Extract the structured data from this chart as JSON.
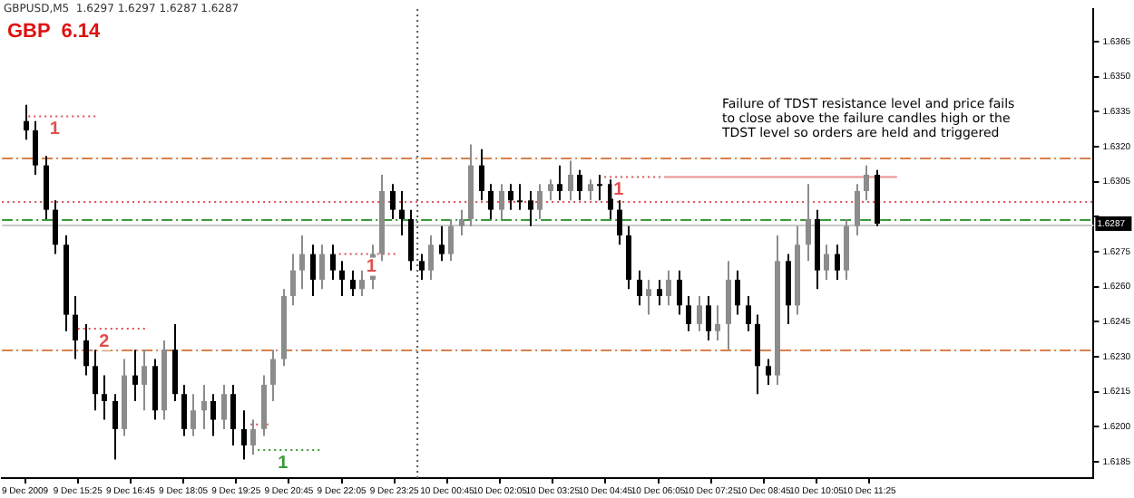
{
  "chart_data": {
    "type": "candlestick",
    "title": "GBPUSD,M5  1.6297 1.6297 1.6287 1.6287",
    "annotations": [
      "GBP  6.14",
      "Failure of TDST resistance level and price fails to close above the failure candles high or the TDST level so orders are held and triggered",
      {
        "text": "1",
        "x": "2009-12-09T14:50",
        "y": 1.6333
      },
      {
        "text": "2",
        "x": "2009-12-09T16:05",
        "y": 1.6242
      },
      {
        "text": "1",
        "x": "2009-12-09T22:50",
        "y": 1.6274
      },
      {
        "text": "1",
        "x": "2009-12-09T20:36",
        "y": 1.619
      },
      {
        "text": "1",
        "x": "2009-12-10T05:05",
        "y": 1.6307
      }
    ],
    "colors": [
      "#000000",
      "#000000",
      "#000000",
      "#000000",
      "#000000",
      "#000000",
      "#000000",
      "#000000",
      "#000000",
      "#000000",
      "#8c8c8c",
      "#000000",
      "#8c8c8c",
      "#000000",
      "#8c8c8c",
      "#000000",
      "#000000",
      "#8c8c8c",
      "#8c8c8c",
      "#000000",
      "#8c8c8c",
      "#000000",
      "#000000",
      "#8c8c8c",
      "#8c8c8c",
      "#8c8c8c",
      "#8c8c8c",
      "#8c8c8c",
      "#8c8c8c",
      "#000000",
      "#8c8c8c",
      "#000000",
      "#000000",
      "#000000",
      "#8c8c8c",
      "#8c8c8c",
      "#8c8c8c",
      "#000000",
      "#000000",
      "#000000",
      "#000000",
      "#8c8c8c",
      "#000000",
      "#8c8c8c",
      "#8c8c8c",
      "#8c8c8c",
      "#000000",
      "#000000",
      "#8c8c8c",
      "#000000",
      "#000000",
      "#000000",
      "#8c8c8c",
      "#8c8c8c",
      "#000000",
      "#8c8c8c",
      "#000000",
      "#8c8c8c",
      "#000000",
      "#000000",
      "#000000",
      "#000000",
      "#000000",
      "#8c8c8c",
      "#000000",
      "#8c8c8c",
      "#000000",
      "#000000",
      "#8c8c8c",
      "#000000",
      "#8c8c8c",
      "#8c8c8c",
      "#000000",
      "#000000",
      "#000000",
      "#000000",
      "#8c8c8c",
      "#000000",
      "#8c8c8c",
      "#8c8c8c",
      "#000000",
      "#8c8c8c",
      "#000000",
      "#8c8c8c",
      "#8c8c8c",
      "#8c8c8c",
      "#000000"
    ],
    "x": [
      "2009-12-09T14:05",
      "2009-12-09T14:20",
      "2009-12-09T14:35",
      "2009-12-09T14:50",
      "2009-12-09T15:05",
      "2009-12-09T15:20",
      "2009-12-09T15:35",
      "2009-12-09T15:50",
      "2009-12-09T16:05",
      "2009-12-09T16:20",
      "2009-12-09T16:35",
      "2009-12-09T16:50",
      "2009-12-09T17:05",
      "2009-12-09T17:20",
      "2009-12-09T17:35",
      "2009-12-09T17:50",
      "2009-12-09T18:05",
      "2009-12-09T18:20",
      "2009-12-09T18:35",
      "2009-12-09T18:50",
      "2009-12-09T19:05",
      "2009-12-09T19:20",
      "2009-12-09T19:35",
      "2009-12-09T19:50",
      "2009-12-09T20:05",
      "2009-12-09T20:20",
      "2009-12-09T20:35",
      "2009-12-09T20:50",
      "2009-12-09T21:05",
      "2009-12-09T21:20",
      "2009-12-09T21:35",
      "2009-12-09T21:50",
      "2009-12-09T22:05",
      "2009-12-09T22:20",
      "2009-12-09T22:35",
      "2009-12-09T22:50",
      "2009-12-09T23:05",
      "2009-12-09T23:20",
      "2009-12-09T23:35",
      "2009-12-09T23:50",
      "2009-12-10T00:05",
      "2009-12-10T00:20",
      "2009-12-10T00:35",
      "2009-12-10T00:50",
      "2009-12-10T01:05",
      "2009-12-10T01:20",
      "2009-12-10T01:35",
      "2009-12-10T01:50",
      "2009-12-10T02:05",
      "2009-12-10T02:20",
      "2009-12-10T02:35",
      "2009-12-10T02:50",
      "2009-12-10T03:05",
      "2009-12-10T03:20",
      "2009-12-10T03:35",
      "2009-12-10T03:50",
      "2009-12-10T04:05",
      "2009-12-10T04:20",
      "2009-12-10T04:35",
      "2009-12-10T04:50",
      "2009-12-10T05:05",
      "2009-12-10T05:20",
      "2009-12-10T05:35",
      "2009-12-10T05:50",
      "2009-12-10T06:05",
      "2009-12-10T06:20",
      "2009-12-10T06:35",
      "2009-12-10T06:50",
      "2009-12-10T07:05",
      "2009-12-10T07:20",
      "2009-12-10T07:35",
      "2009-12-10T07:50",
      "2009-12-10T08:05",
      "2009-12-10T08:20",
      "2009-12-10T08:35",
      "2009-12-10T08:50",
      "2009-12-10T09:05",
      "2009-12-10T09:20",
      "2009-12-10T09:35",
      "2009-12-10T09:50",
      "2009-12-10T10:05",
      "2009-12-10T10:20",
      "2009-12-10T10:35",
      "2009-12-10T10:50",
      "2009-12-10T11:05",
      "2009-12-10T11:20",
      "2009-12-10T11:35"
    ],
    "ohlc": [
      [
        1.6331,
        1.6338,
        1.6323,
        1.6327
      ],
      [
        1.6327,
        1.6331,
        1.6308,
        1.6312
      ],
      [
        1.6312,
        1.6316,
        1.6289,
        1.6293
      ],
      [
        1.6293,
        1.6297,
        1.6274,
        1.6278
      ],
      [
        1.6278,
        1.6282,
        1.6241,
        1.6248
      ],
      [
        1.6248,
        1.6256,
        1.6229,
        1.6237
      ],
      [
        1.6237,
        1.6244,
        1.6222,
        1.6226
      ],
      [
        1.6226,
        1.6233,
        1.6207,
        1.6214
      ],
      [
        1.6214,
        1.6222,
        1.6203,
        1.6211
      ],
      [
        1.6211,
        1.6214,
        1.6186,
        1.6199
      ],
      [
        1.6199,
        1.6229,
        1.6196,
        1.6222
      ],
      [
        1.6222,
        1.6233,
        1.6211,
        1.6218
      ],
      [
        1.6218,
        1.6233,
        1.6207,
        1.6226
      ],
      [
        1.6226,
        1.6229,
        1.6203,
        1.6207
      ],
      [
        1.6207,
        1.6237,
        1.6203,
        1.6233
      ],
      [
        1.6233,
        1.6244,
        1.6211,
        1.6214
      ],
      [
        1.6214,
        1.6218,
        1.6196,
        1.6199
      ],
      [
        1.6199,
        1.6214,
        1.6196,
        1.6207
      ],
      [
        1.6207,
        1.6218,
        1.6199,
        1.6211
      ],
      [
        1.6211,
        1.6214,
        1.6196,
        1.6203
      ],
      [
        1.6203,
        1.6218,
        1.6199,
        1.6214
      ],
      [
        1.6214,
        1.6218,
        1.6192,
        1.6199
      ],
      [
        1.6199,
        1.6207,
        1.6186,
        1.6192
      ],
      [
        1.6192,
        1.6203,
        1.6188,
        1.6199
      ],
      [
        1.6199,
        1.6222,
        1.6196,
        1.6218
      ],
      [
        1.6218,
        1.6233,
        1.6211,
        1.6229
      ],
      [
        1.6229,
        1.6259,
        1.6226,
        1.6256
      ],
      [
        1.6256,
        1.6274,
        1.6252,
        1.6267
      ],
      [
        1.6267,
        1.6282,
        1.6259,
        1.6274
      ],
      [
        1.6274,
        1.6278,
        1.6256,
        1.6263
      ],
      [
        1.6263,
        1.6278,
        1.6259,
        1.6274
      ],
      [
        1.6274,
        1.6278,
        1.6263,
        1.6267
      ],
      [
        1.6267,
        1.6271,
        1.6256,
        1.6263
      ],
      [
        1.6263,
        1.6267,
        1.6256,
        1.6259
      ],
      [
        1.6259,
        1.6267,
        1.6256,
        1.6263
      ],
      [
        1.6263,
        1.6278,
        1.6259,
        1.6274
      ],
      [
        1.6274,
        1.6308,
        1.6271,
        1.6301
      ],
      [
        1.6301,
        1.6304,
        1.6289,
        1.6293
      ],
      [
        1.6293,
        1.6301,
        1.6282,
        1.6289
      ],
      [
        1.6289,
        1.6293,
        1.6267,
        1.6271
      ],
      [
        1.6271,
        1.6274,
        1.6263,
        1.6267
      ],
      [
        1.6267,
        1.6282,
        1.6263,
        1.6278
      ],
      [
        1.6278,
        1.6286,
        1.6271,
        1.6274
      ],
      [
        1.6274,
        1.6289,
        1.6271,
        1.6286
      ],
      [
        1.6286,
        1.6293,
        1.6282,
        1.6289
      ],
      [
        1.6289,
        1.6321,
        1.6286,
        1.6312
      ],
      [
        1.6312,
        1.6319,
        1.6297,
        1.6301
      ],
      [
        1.6301,
        1.6304,
        1.6289,
        1.6293
      ],
      [
        1.6293,
        1.6304,
        1.6289,
        1.6301
      ],
      [
        1.6301,
        1.6304,
        1.6293,
        1.6297
      ],
      [
        1.6297,
        1.6304,
        1.6293,
        1.6297
      ],
      [
        1.6297,
        1.6301,
        1.6286,
        1.6293
      ],
      [
        1.6293,
        1.6304,
        1.6289,
        1.6301
      ],
      [
        1.6301,
        1.6306,
        1.6297,
        1.6304
      ],
      [
        1.6304,
        1.6312,
        1.6297,
        1.6301
      ],
      [
        1.6301,
        1.6314,
        1.6297,
        1.6308
      ],
      [
        1.6308,
        1.631,
        1.6297,
        1.6301
      ],
      [
        1.6301,
        1.6306,
        1.6297,
        1.6304
      ],
      [
        1.6304,
        1.6308,
        1.6297,
        1.6304
      ],
      [
        1.6304,
        1.6306,
        1.6289,
        1.6293
      ],
      [
        1.6293,
        1.6297,
        1.6278,
        1.6282
      ],
      [
        1.6282,
        1.6286,
        1.6259,
        1.6263
      ],
      [
        1.6263,
        1.6267,
        1.6252,
        1.6256
      ],
      [
        1.6256,
        1.6263,
        1.6248,
        1.6259
      ],
      [
        1.6259,
        1.6263,
        1.6252,
        1.6256
      ],
      [
        1.6256,
        1.6267,
        1.6252,
        1.6263
      ],
      [
        1.6263,
        1.6267,
        1.6248,
        1.6252
      ],
      [
        1.6252,
        1.6256,
        1.6241,
        1.6244
      ],
      [
        1.6244,
        1.6256,
        1.6241,
        1.6252
      ],
      [
        1.6252,
        1.6256,
        1.6237,
        1.6241
      ],
      [
        1.6241,
        1.6252,
        1.6237,
        1.6244
      ],
      [
        1.6244,
        1.6271,
        1.6233,
        1.6263
      ],
      [
        1.6263,
        1.6267,
        1.6248,
        1.6252
      ],
      [
        1.6252,
        1.6256,
        1.6241,
        1.6244
      ],
      [
        1.6244,
        1.6248,
        1.6214,
        1.6226
      ],
      [
        1.6226,
        1.6229,
        1.6218,
        1.6222
      ],
      [
        1.6222,
        1.6282,
        1.6218,
        1.6271
      ],
      [
        1.6271,
        1.6274,
        1.6244,
        1.6252
      ],
      [
        1.6252,
        1.6286,
        1.6248,
        1.6278
      ],
      [
        1.6278,
        1.6304,
        1.6271,
        1.6289
      ],
      [
        1.6289,
        1.6293,
        1.6259,
        1.6267
      ],
      [
        1.6267,
        1.6278,
        1.6263,
        1.6274
      ],
      [
        1.6274,
        1.6278,
        1.6263,
        1.6267
      ],
      [
        1.6267,
        1.6289,
        1.6263,
        1.6286
      ],
      [
        1.6286,
        1.6304,
        1.6282,
        1.6301
      ],
      [
        1.6301,
        1.6312,
        1.6297,
        1.6308
      ],
      [
        1.6308,
        1.631,
        1.6286,
        1.6287
      ]
    ],
    "series": [
      {
        "type": "line",
        "color": "#e05050",
        "line_style": "dotted",
        "x": [
          "2009-12-09T14:10",
          "2009-12-09T15:52"
        ],
        "values": [
          1.6333,
          1.6333
        ]
      },
      {
        "type": "line",
        "color": "#e05050",
        "line_style": "dotted",
        "x": [
          "2009-12-09T15:25",
          "2009-12-09T17:07"
        ],
        "values": [
          1.6242,
          1.6242
        ]
      },
      {
        "type": "line",
        "color": "#e05050",
        "line_style": "dotted",
        "x": [
          "2009-12-09T22:01",
          "2009-12-09T23:27"
        ],
        "values": [
          1.6274,
          1.6274
        ]
      },
      {
        "type": "line",
        "color": "#e05050",
        "line_style": "dotted",
        "x": [
          "2009-12-09T19:47",
          "2009-12-09T20:14"
        ],
        "values": [
          1.6201,
          1.6201
        ]
      },
      {
        "type": "line",
        "color": "#3a9a3a",
        "line_style": "dotted",
        "x": [
          "2009-12-09T19:58",
          "2009-12-09T21:34"
        ],
        "values": [
          1.619,
          1.619
        ]
      },
      {
        "type": "line",
        "color": "#e05050",
        "line_style": "dotted",
        "x": [
          "2009-12-10T04:35",
          "2009-12-10T06:14"
        ],
        "values": [
          1.6307,
          1.6307
        ]
      },
      {
        "type": "line",
        "color": "#e89090",
        "line_style": "solid",
        "x": [
          "2009-12-10T06:14",
          "2009-12-10T12:07"
        ],
        "values": [
          1.6307,
          1.6307
        ]
      }
    ],
    "ref_lines": [
      {
        "axis": "y",
        "value": 1.6297,
        "color": "#e05050",
        "line_style": "dotted"
      },
      {
        "axis": "y",
        "value": 1.6315,
        "color": "#d9804a",
        "line_style": "dashed"
      },
      {
        "axis": "y",
        "value": 1.6233,
        "color": "#d9804a",
        "line_style": "dashed"
      },
      {
        "axis": "y",
        "value": 1.6287,
        "color": "#c8c8c8",
        "line_style": "solid",
        "label": "1.6287"
      },
      {
        "axis": "y",
        "value": 1.6289,
        "color": "#3a9a3a",
        "line_style": "dashed"
      },
      {
        "axis": "x",
        "value": "2009-12-10T00:00",
        "color": "#555555",
        "line_style": "dotted"
      }
    ],
    "xlim": [
      "2009-12-09T13:30",
      "2009-12-10T17:05"
    ],
    "xticks": [
      {
        "value": "2009-12-09T14:05",
        "label": "9 Dec 2009"
      },
      {
        "value": "2009-12-09T15:25",
        "label": "9 Dec 15:25"
      },
      {
        "value": "2009-12-09T16:45",
        "label": "9 Dec 16:45"
      },
      {
        "value": "2009-12-09T18:05",
        "label": "9 Dec 18:05"
      },
      {
        "value": "2009-12-09T19:25",
        "label": "9 Dec 19:25"
      },
      {
        "value": "2009-12-09T20:45",
        "label": "9 Dec 20:45"
      },
      {
        "value": "2009-12-09T22:05",
        "label": "9 Dec 22:05"
      },
      {
        "value": "2009-12-09T23:25",
        "label": "9 Dec 23:25"
      },
      {
        "value": "2009-12-10T00:45",
        "label": "10 Dec 00:45"
      },
      {
        "value": "2009-12-10T02:05",
        "label": "10 Dec 02:05"
      },
      {
        "value": "2009-12-10T03:25",
        "label": "10 Dec 03:25"
      },
      {
        "value": "2009-12-10T04:45",
        "label": "10 Dec 04:45"
      },
      {
        "value": "2009-12-10T06:05",
        "label": "10 Dec 06:05"
      },
      {
        "value": "2009-12-10T07:25",
        "label": "10 Dec 07:25"
      },
      {
        "value": "2009-12-10T08:45",
        "label": "10 Dec 08:45"
      },
      {
        "value": "2009-12-10T10:05",
        "label": "10 Dec 10:05"
      },
      {
        "value": "2009-12-10T11:25",
        "label": "10 Dec 11:25"
      }
    ],
    "ylim": [
      1.6178,
      1.6379
    ],
    "yticks": [
      {
        "value": 1.6365,
        "label": "1.6365"
      },
      {
        "value": 1.635,
        "label": "1.6350"
      },
      {
        "value": 1.6335,
        "label": "1.6335"
      },
      {
        "value": 1.632,
        "label": "1.6320"
      },
      {
        "value": 1.6305,
        "label": "1.6305"
      },
      {
        "value": 1.629,
        "label": null
      },
      {
        "value": 1.6275,
        "label": "1.6275"
      },
      {
        "value": 1.626,
        "label": "1.6260"
      },
      {
        "value": 1.6245,
        "label": "1.6245"
      },
      {
        "value": 1.623,
        "label": "1.6230"
      },
      {
        "value": 1.6215,
        "label": "1.6215"
      },
      {
        "value": 1.62,
        "label": "1.6200"
      },
      {
        "value": 1.6185,
        "label": "1.6185"
      }
    ],
    "grid": false,
    "legend": false
  }
}
